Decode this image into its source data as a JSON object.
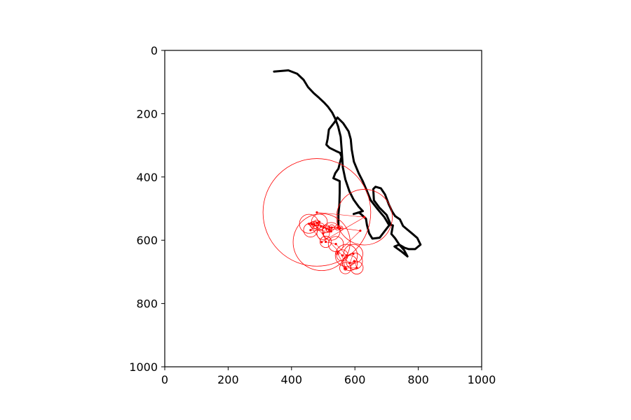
{
  "chart_data": {
    "type": "line",
    "title": "",
    "xlabel": "",
    "ylabel": "",
    "xlim": [
      0,
      1000
    ],
    "ylim": [
      1000,
      0
    ],
    "y_inverted": true,
    "grid": false,
    "aspect": "equal",
    "x_ticks": [
      "0",
      "200",
      "400",
      "600",
      "800",
      "1000"
    ],
    "y_ticks": [
      "0",
      "200",
      "400",
      "600",
      "800",
      "1000"
    ],
    "series": [
      {
        "kind": "path",
        "color": "#000000",
        "points": [
          [
            345,
            67
          ],
          [
            390,
            63
          ],
          [
            418,
            74
          ],
          [
            438,
            93
          ],
          [
            452,
            116
          ],
          [
            470,
            135
          ],
          [
            487,
            150
          ],
          [
            503,
            165
          ],
          [
            515,
            178
          ],
          [
            528,
            196
          ],
          [
            538,
            216
          ],
          [
            547,
            240
          ],
          [
            555,
            273
          ],
          [
            558,
            310
          ],
          [
            562,
            370
          ],
          [
            570,
            408
          ],
          [
            583,
            446
          ],
          [
            596,
            472
          ],
          [
            612,
            494
          ],
          [
            625,
            508
          ],
          [
            596,
            517
          ],
          [
            613,
            512
          ],
          [
            635,
            532
          ],
          [
            638,
            552
          ],
          [
            645,
            578
          ],
          [
            655,
            595
          ],
          [
            678,
            592
          ],
          [
            694,
            571
          ],
          [
            712,
            548
          ],
          [
            700,
            520
          ],
          [
            678,
            498
          ],
          [
            660,
            474
          ],
          [
            658,
            438
          ],
          [
            665,
            431
          ],
          [
            682,
            436
          ],
          [
            695,
            455
          ],
          [
            707,
            487
          ],
          [
            718,
            510
          ],
          [
            727,
            524
          ],
          [
            742,
            534
          ],
          [
            752,
            555
          ],
          [
            782,
            580
          ],
          [
            797,
            593
          ],
          [
            807,
            614
          ],
          [
            790,
            628
          ],
          [
            770,
            628
          ],
          [
            757,
            624
          ],
          [
            740,
            614
          ],
          [
            725,
            620
          ],
          [
            746,
            635
          ],
          [
            766,
            651
          ],
          [
            755,
            631
          ],
          [
            740,
            614
          ],
          [
            727,
            594
          ],
          [
            715,
            580
          ],
          [
            720,
            553
          ],
          [
            706,
            549
          ],
          [
            693,
            527
          ],
          [
            673,
            503
          ],
          [
            650,
            474
          ],
          [
            637,
            442
          ],
          [
            625,
            414
          ],
          [
            612,
            388
          ],
          [
            597,
            352
          ],
          [
            590,
            314
          ],
          [
            587,
            281
          ],
          [
            580,
            256
          ],
          [
            563,
            230
          ],
          [
            545,
            212
          ],
          [
            535,
            228
          ],
          [
            518,
            250
          ],
          [
            514,
            280
          ],
          [
            510,
            298
          ],
          [
            520,
            308
          ],
          [
            540,
            318
          ],
          [
            553,
            324
          ],
          [
            558,
            336
          ],
          [
            553,
            354
          ],
          [
            548,
            374
          ],
          [
            538,
            388
          ],
          [
            532,
            404
          ],
          [
            552,
            413
          ],
          [
            552,
            450
          ],
          [
            551,
            485
          ],
          [
            548,
            518
          ],
          [
            548,
            553
          ]
        ]
      },
      {
        "kind": "points_with_radius",
        "color": "#ff0000",
        "points": [
          {
            "x": 480,
            "y": 512,
            "r": 170
          },
          {
            "x": 630,
            "y": 527,
            "r": 88
          },
          {
            "x": 495,
            "y": 606,
            "r": 90
          },
          {
            "x": 455,
            "y": 548,
            "r": 30
          },
          {
            "x": 488,
            "y": 542,
            "r": 25
          },
          {
            "x": 460,
            "y": 568,
            "r": 22
          },
          {
            "x": 525,
            "y": 572,
            "r": 28
          },
          {
            "x": 500,
            "y": 578,
            "r": 20
          },
          {
            "x": 508,
            "y": 605,
            "r": 18
          },
          {
            "x": 540,
            "y": 612,
            "r": 24
          },
          {
            "x": 573,
            "y": 648,
            "r": 35
          },
          {
            "x": 595,
            "y": 643,
            "r": 30
          },
          {
            "x": 584,
            "y": 672,
            "r": 24
          },
          {
            "x": 598,
            "y": 666,
            "r": 26
          },
          {
            "x": 606,
            "y": 687,
            "r": 20
          },
          {
            "x": 570,
            "y": 688,
            "r": 18
          },
          {
            "x": 560,
            "y": 648,
            "r": 18
          },
          {
            "x": 472,
            "y": 552,
            "r": 12
          },
          {
            "x": 493,
            "y": 556,
            "r": 10
          },
          {
            "x": 510,
            "y": 564,
            "r": 12
          },
          {
            "x": 527,
            "y": 560,
            "r": 9
          },
          {
            "x": 545,
            "y": 560,
            "r": 8
          },
          {
            "x": 555,
            "y": 562,
            "r": 7
          },
          {
            "x": 518,
            "y": 567,
            "r": 8
          },
          {
            "x": 480,
            "y": 545,
            "r": 9
          },
          {
            "x": 465,
            "y": 550,
            "r": 8
          },
          {
            "x": 617,
            "y": 570,
            "r": 2
          },
          {
            "x": 545,
            "y": 640,
            "r": 6
          },
          {
            "x": 570,
            "y": 690,
            "r": 5
          }
        ]
      }
    ]
  }
}
